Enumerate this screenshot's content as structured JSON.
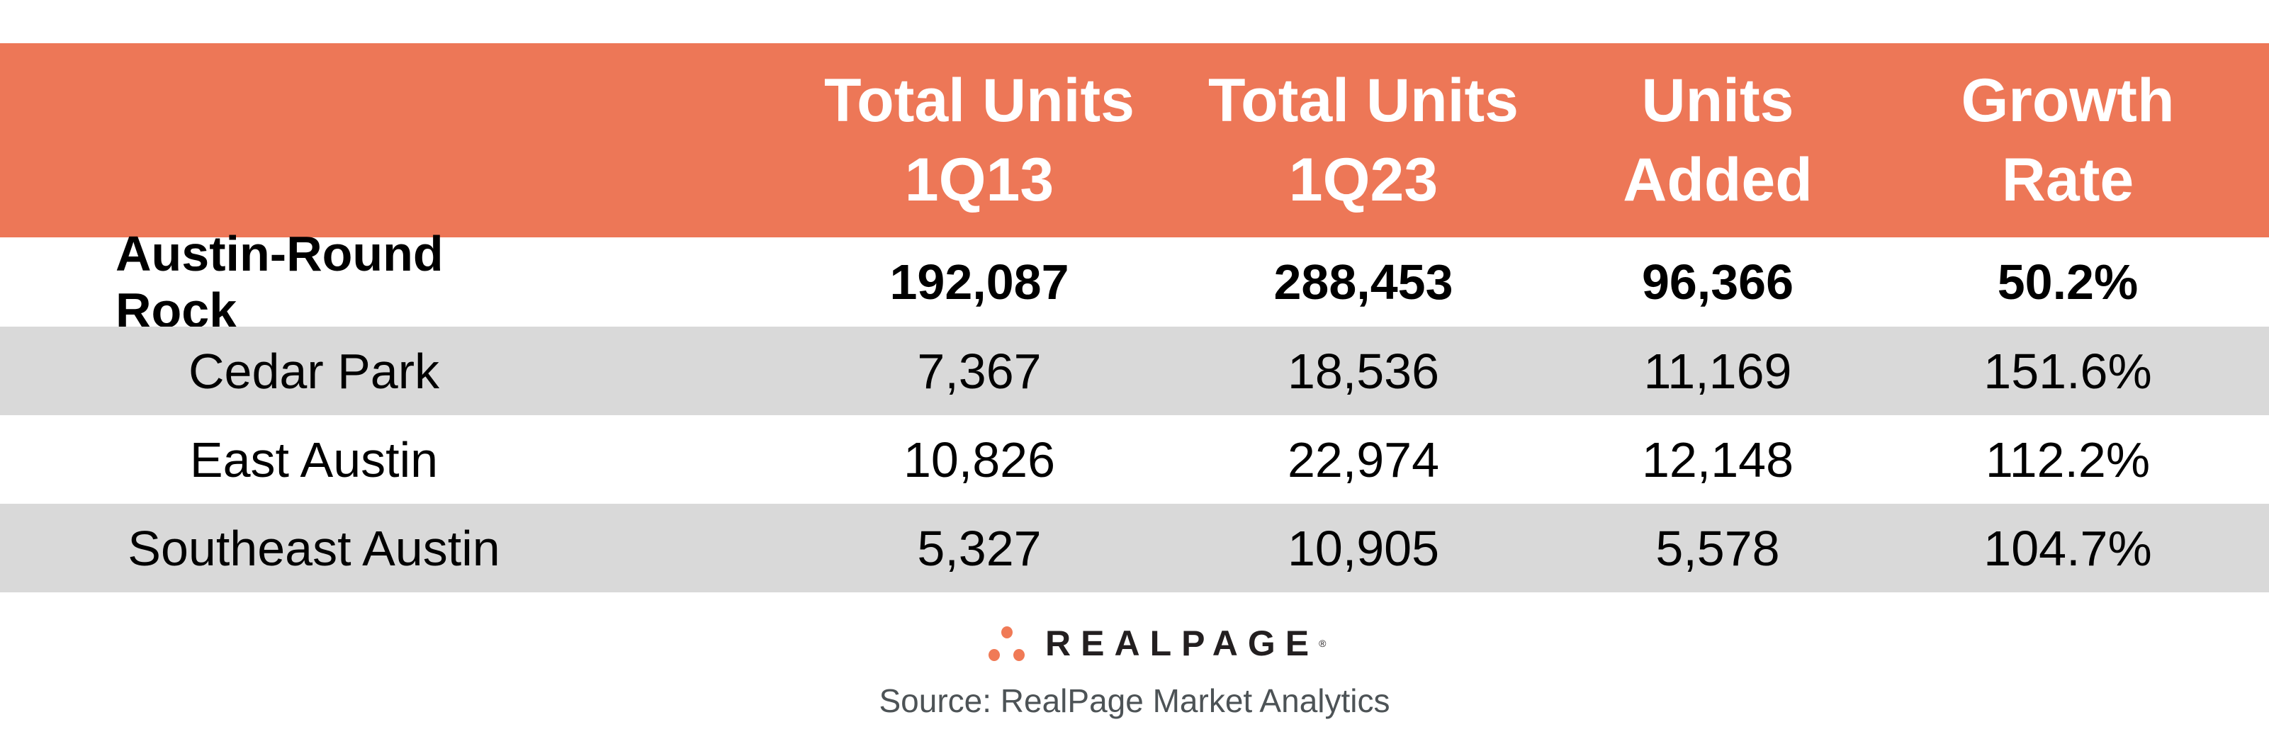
{
  "colors": {
    "header": "#ED7757",
    "stripe": "#D9D9D9",
    "logo_dots": "#F07A56"
  },
  "table": {
    "headers": [
      "",
      "Total Units\n1Q13",
      "Total Units\n1Q23",
      "Units\nAdded",
      "Growth\nRate"
    ],
    "header_lines": [
      [
        "",
        ""
      ],
      [
        "Total Units",
        "1Q13"
      ],
      [
        "Total Units",
        "1Q23"
      ],
      [
        "Units",
        "Added"
      ],
      [
        "Growth",
        "Rate"
      ]
    ],
    "rows": [
      [
        "Austin-Round Rock",
        "192,087",
        "288,453",
        "96,366",
        "50.2%"
      ],
      [
        "Cedar Park",
        "7,367",
        "18,536",
        "11,169",
        "151.6%"
      ],
      [
        "East Austin",
        "10,826",
        "22,974",
        "12,148",
        "112.2%"
      ],
      [
        "Southeast Austin",
        "5,327",
        "10,905",
        "5,578",
        "104.7%"
      ]
    ]
  },
  "logo": {
    "text": "REALPAGE",
    "mark": "®"
  },
  "source": "Source: RealPage Market Analytics"
}
